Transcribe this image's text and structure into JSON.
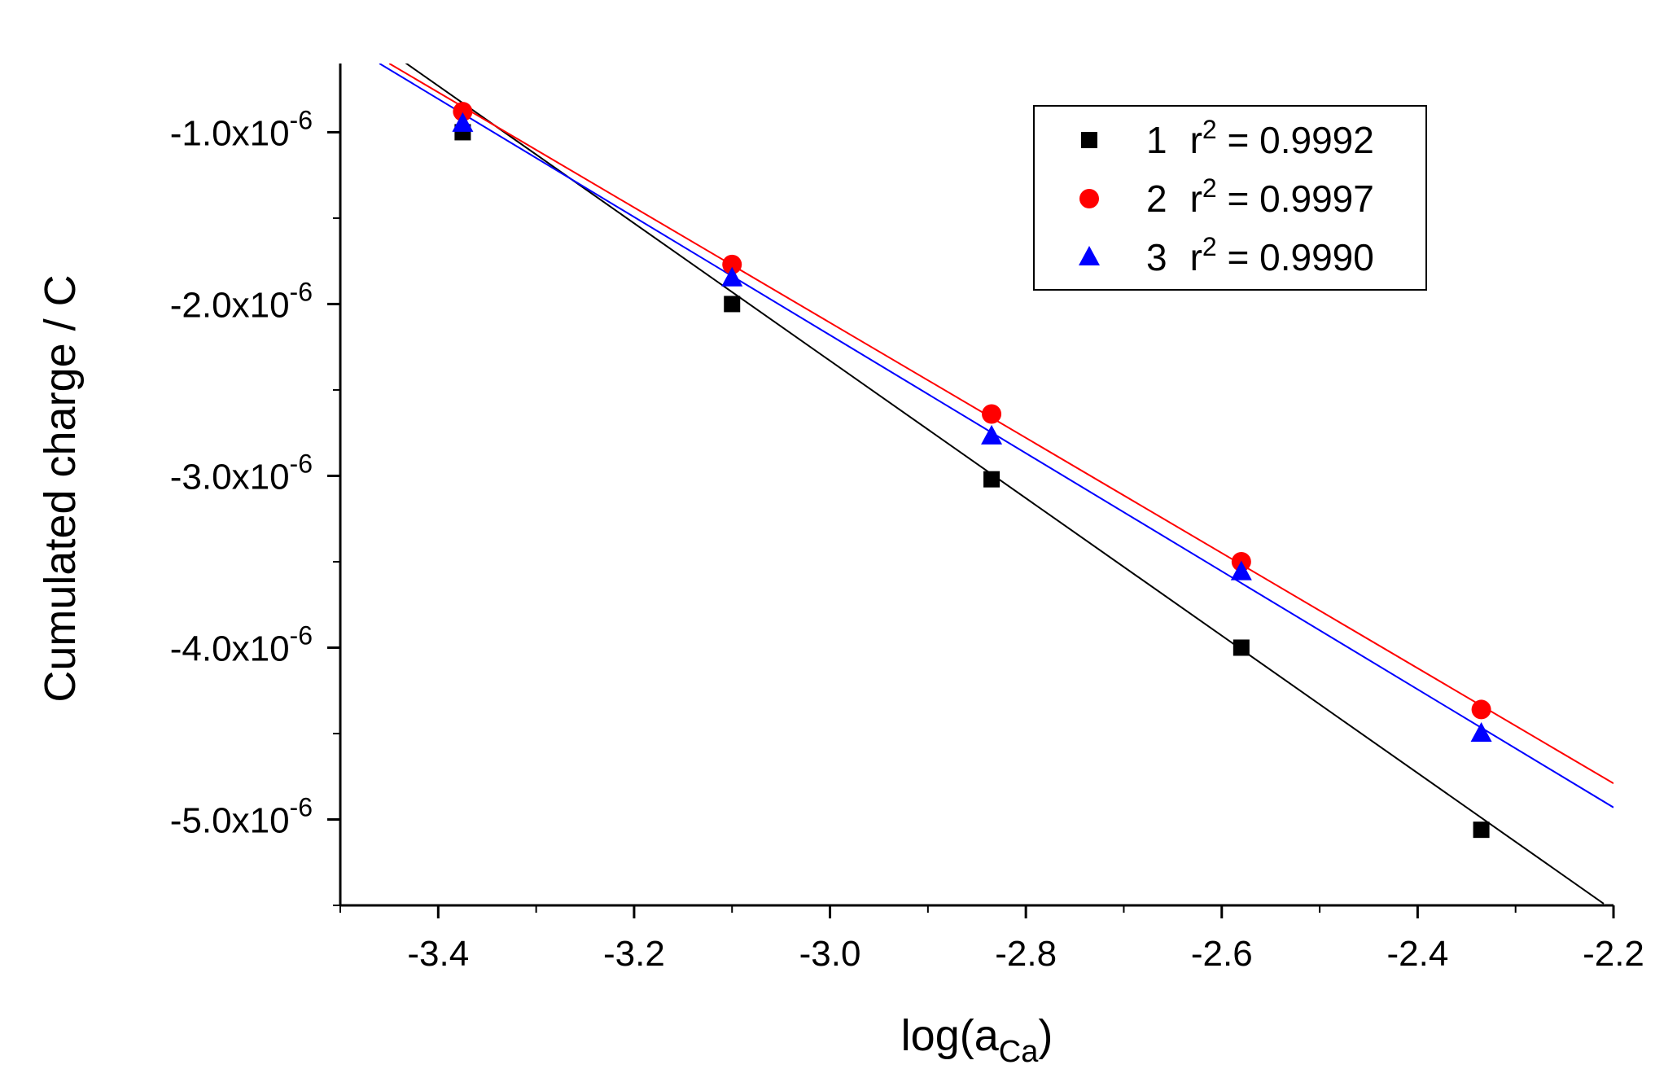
{
  "chart_data": {
    "type": "scatter",
    "title": "",
    "xlabel": "log(a",
    "xlabel_sub": "Ca",
    "xlabel_close": ")",
    "ylabel": "Cumulated charge / C",
    "xlim": [
      -3.5,
      -2.2
    ],
    "ylim": [
      -5.5e-06,
      -6e-07
    ],
    "x_ticks": [
      -3.4,
      -3.2,
      -3.0,
      -2.8,
      -2.6,
      -2.4,
      -2.2
    ],
    "x_tick_labels": [
      "-3.4",
      "-3.2",
      "-3.0",
      "-2.8",
      "-2.6",
      "-2.4",
      "-2.2"
    ],
    "y_ticks": [
      -1e-06,
      -2e-06,
      -3e-06,
      -4e-06,
      -5e-06
    ],
    "y_tick_labels": [
      {
        "mantissa": "-1.0x10",
        "exp": "-6"
      },
      {
        "mantissa": "-2.0x10",
        "exp": "-6"
      },
      {
        "mantissa": "-3.0x10",
        "exp": "-6"
      },
      {
        "mantissa": "-4.0x10",
        "exp": "-6"
      },
      {
        "mantissa": "-5.0x10",
        "exp": "-6"
      }
    ],
    "legend_position": "top-right",
    "series": [
      {
        "name": "1",
        "r2_prefix": "r",
        "r2_exp": "2",
        "r2_value": " = 0.9992",
        "marker": "square",
        "color": "#000000",
        "x": [
          -3.375,
          -3.1,
          -2.835,
          -2.58,
          -2.335
        ],
        "y": [
          -1e-06,
          -2e-06,
          -3.02e-06,
          -4e-06,
          -5.06e-06
        ],
        "fit": {
          "x": [
            -3.46,
            -2.21
          ],
          "y": [
            -4.9e-07,
            -5.49e-06
          ]
        }
      },
      {
        "name": "2",
        "r2_prefix": "r",
        "r2_exp": "2",
        "r2_value": " = 0.9997",
        "marker": "circle",
        "color": "#ff0000",
        "x": [
          -3.375,
          -3.1,
          -2.835,
          -2.58,
          -2.335
        ],
        "y": [
          -8.8e-07,
          -1.77e-06,
          -2.64e-06,
          -3.5e-06,
          -4.36e-06
        ],
        "fit": {
          "x": [
            -3.45,
            -2.2
          ],
          "y": [
            -6e-07,
            -4.79e-06
          ]
        }
      },
      {
        "name": "3",
        "r2_prefix": "r",
        "r2_exp": "2",
        "r2_value": " = 0.9990",
        "marker": "triangle",
        "color": "#0000ff",
        "x": [
          -3.375,
          -3.1,
          -2.835,
          -2.58,
          -2.335
        ],
        "y": [
          -9.5e-07,
          -1.85e-06,
          -2.77e-06,
          -3.56e-06,
          -4.5e-06
        ],
        "fit": {
          "x": [
            -3.46,
            -2.2
          ],
          "y": [
            -6e-07,
            -4.93e-06
          ]
        }
      }
    ]
  }
}
